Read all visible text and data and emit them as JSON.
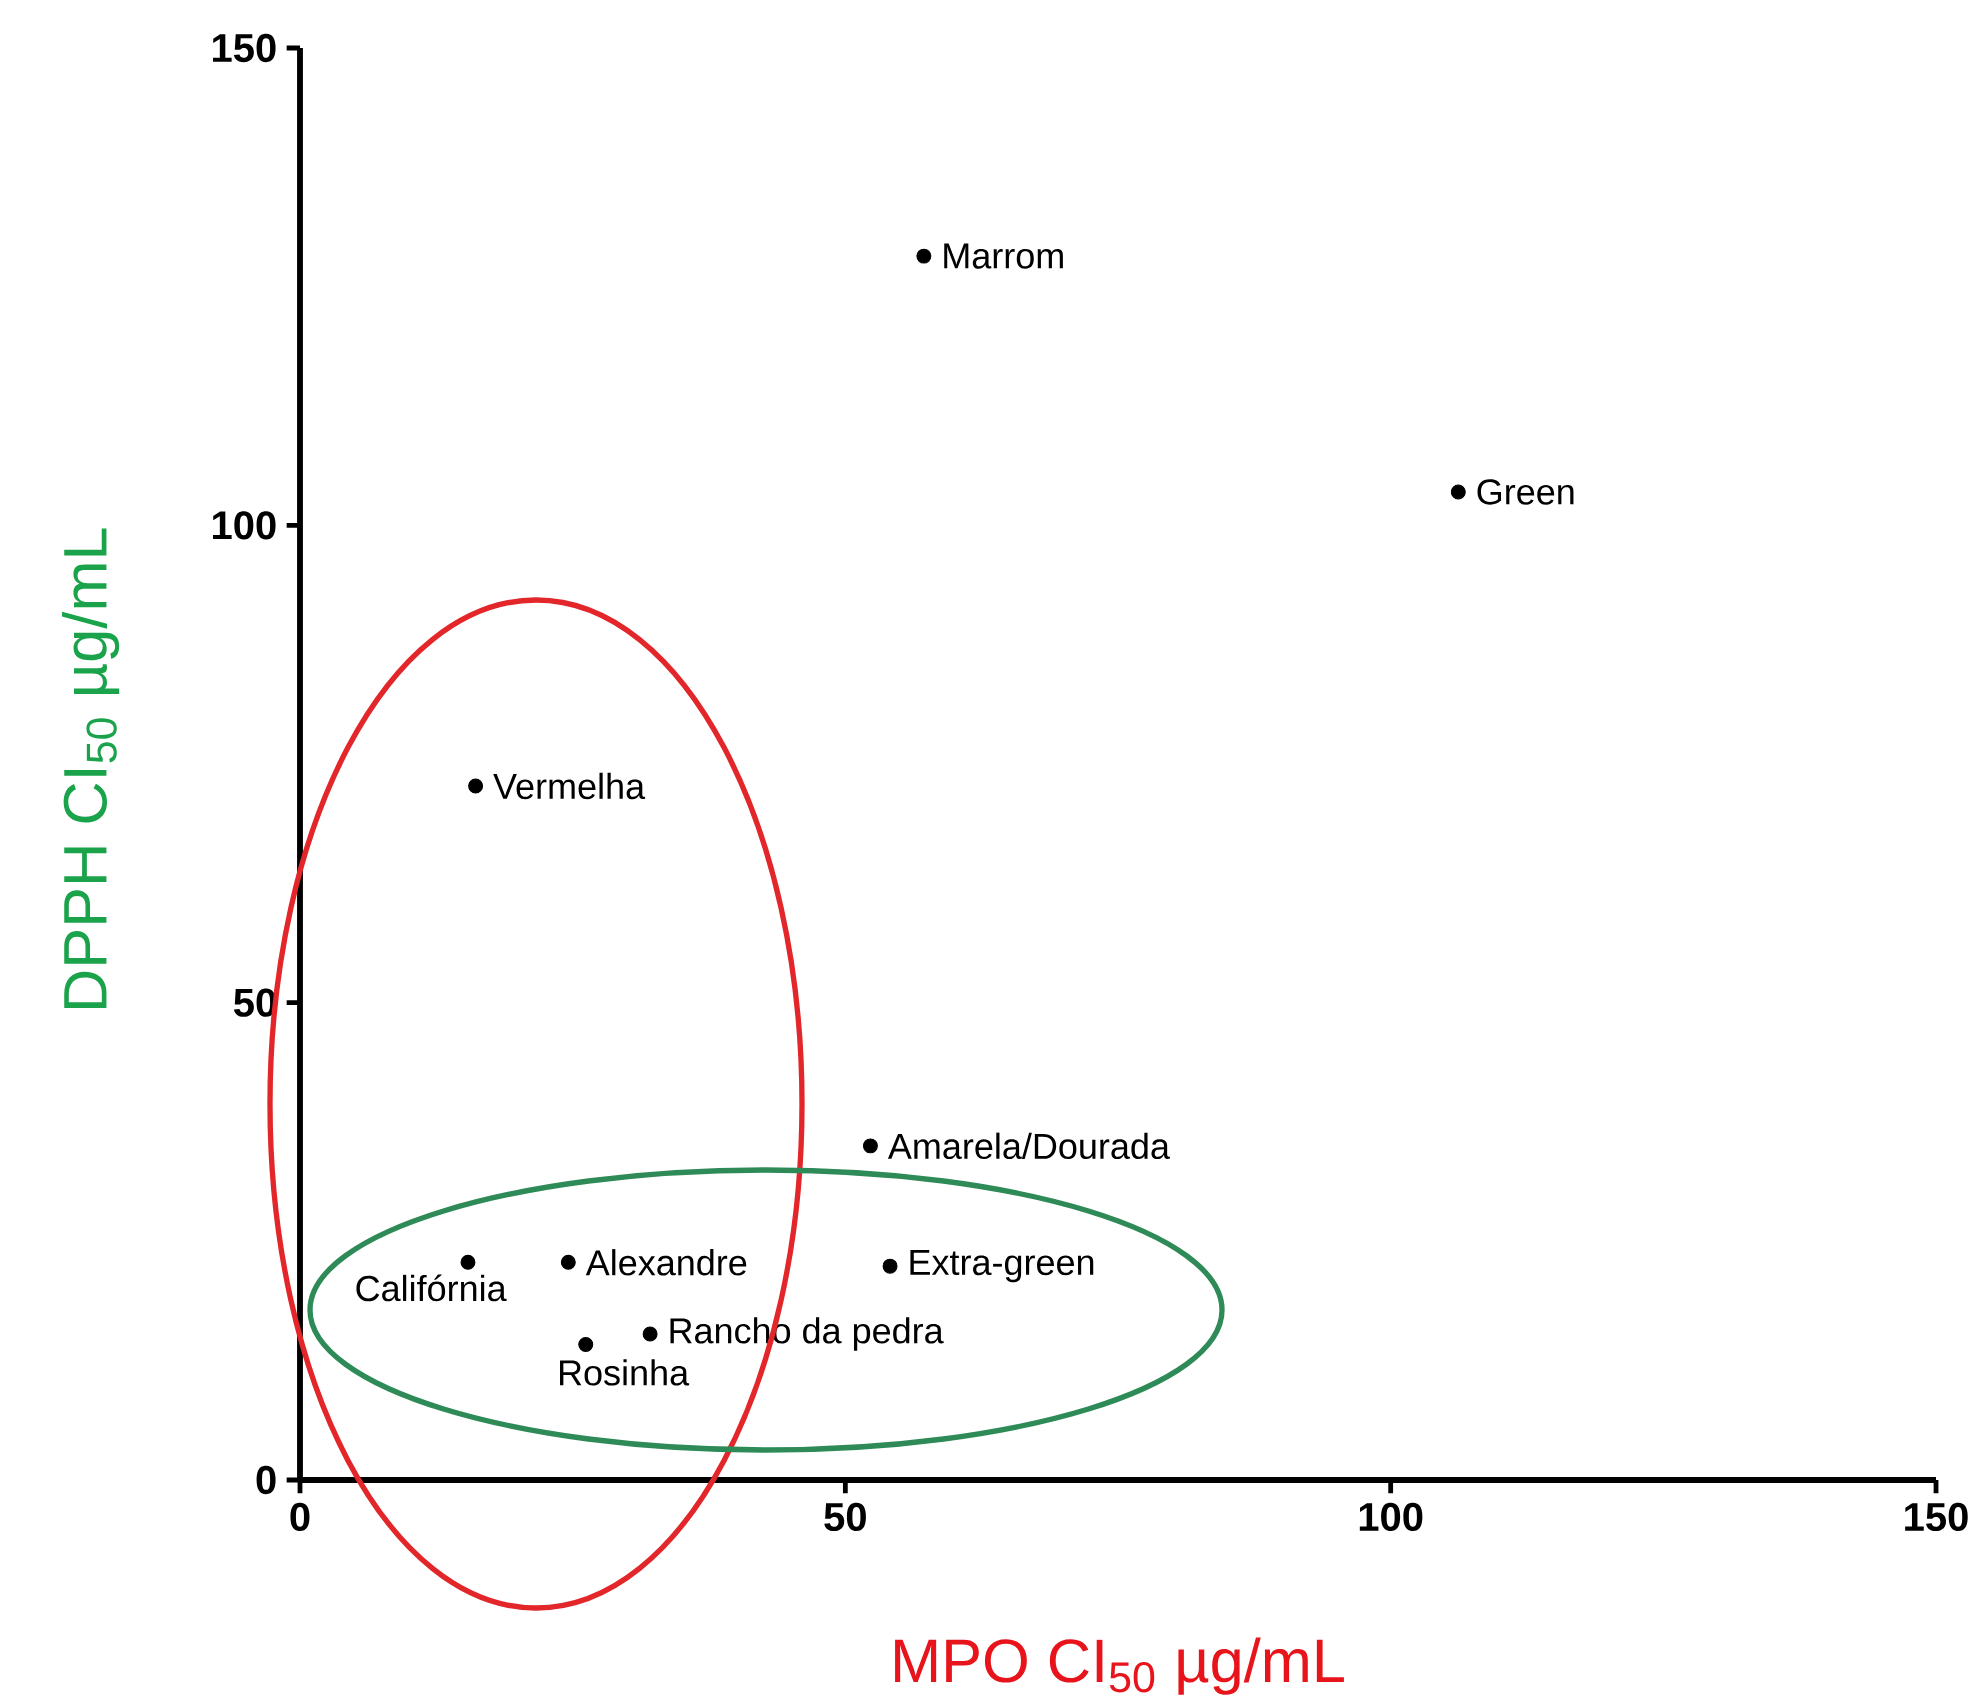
{
  "chart_data": {
    "type": "scatter",
    "xlabel": "MPO CI$_{50}$ µg/mL",
    "ylabel": "DPPH CI$_{50}$ µg/mL",
    "xlim": [
      0,
      150
    ],
    "ylim": [
      0,
      150
    ],
    "xticks": [
      0,
      50,
      100,
      150
    ],
    "yticks": [
      0,
      50,
      100,
      150
    ],
    "marker": "circle",
    "series": [
      {
        "color": "#000000",
        "x": [
          57.2,
          106.2,
          16.1,
          52.3,
          54.1,
          24.6,
          15.4,
          32.1,
          26.2
        ],
        "values": [
          128.2,
          103.5,
          72.7,
          35.0,
          22.4,
          22.8,
          22.8,
          15.3,
          14.2
        ]
      }
    ],
    "annotations": [
      {
        "text": "Marrom",
        "x": 57.2,
        "y": 128.2
      },
      {
        "text": "Green",
        "x": 106.2,
        "y": 103.5
      },
      {
        "text": "Vermelha",
        "x": 16.1,
        "y": 72.7
      },
      {
        "text": "Amarela/Dourada",
        "x": 52.3,
        "y": 35.0
      },
      {
        "text": "Extra-green",
        "x": 54.1,
        "y": 22.4
      },
      {
        "text": "Alexandre",
        "x": 24.6,
        "y": 22.8
      },
      {
        "text": "Califórnia",
        "x": 15.4,
        "y": 22.8
      },
      {
        "text": "Rancho da pedra",
        "x": 32.1,
        "y": 15.3
      },
      {
        "text": "Rosinha",
        "x": 26.2,
        "y": 14.2
      }
    ]
  }
}
